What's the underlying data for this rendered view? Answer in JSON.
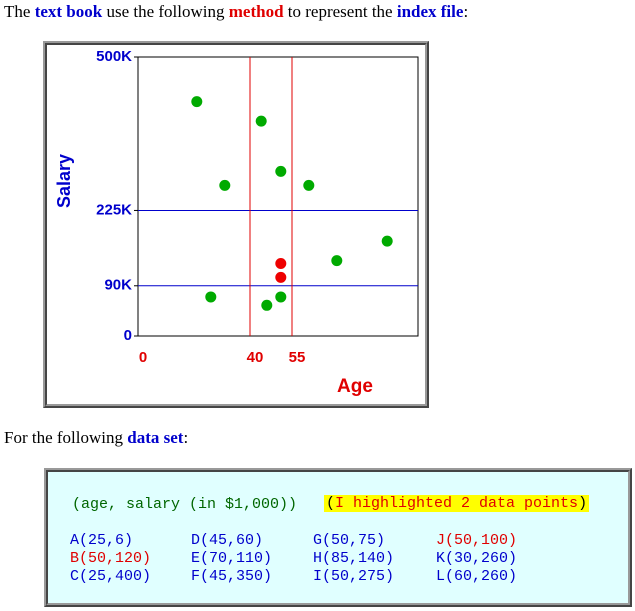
{
  "intro": {
    "parts": [
      {
        "text": "The "
      },
      {
        "text": "text book",
        "emph": "#0000cc"
      },
      {
        "text": " use the following "
      },
      {
        "text": "method",
        "emph": "#e00000"
      },
      {
        "text": " to represent the "
      },
      {
        "text": "index file",
        "emph": "#0000cc"
      },
      {
        "text": ":"
      }
    ]
  },
  "chart_data": {
    "type": "scatter",
    "xlabel": "Age",
    "ylabel": "Salary",
    "xlim": [
      0,
      100
    ],
    "ylim": [
      0,
      500
    ],
    "xticks": [
      0,
      40,
      55
    ],
    "yticks": [
      0,
      {
        "value": 90,
        "label": "90K"
      },
      {
        "value": 225,
        "label": "225K"
      },
      {
        "value": 500,
        "label": "500K"
      }
    ],
    "xaxis_color": "#e00000",
    "yaxis_color": "#0000cc",
    "series": [
      {
        "name": "points",
        "color": "#00aa00",
        "x": [
          21,
          44,
          31,
          51,
          61,
          89,
          71,
          26,
          46,
          51
        ],
        "values": [
          420,
          385,
          270,
          295,
          270,
          170,
          135,
          70,
          55,
          70
        ]
      },
      {
        "name": "highlighted",
        "color": "#ee0000",
        "x": [
          51,
          51
        ],
        "values": [
          130,
          105
        ]
      }
    ]
  },
  "second": {
    "parts": [
      {
        "text": "For the following "
      },
      {
        "text": "data set",
        "emph": "#0000cc"
      },
      {
        "text": ":"
      }
    ]
  },
  "dataset": {
    "header": {
      "text": "(age, salary (in $1,000))",
      "color": "#006600"
    },
    "note": {
      "parts": [
        {
          "text": "(",
          "color": "#000000"
        },
        {
          "text": "I highlighted 2 data points",
          "color": "#e00000"
        },
        {
          "text": ")",
          "color": "#000000"
        }
      ]
    },
    "rows": [
      [
        {
          "text": "A(25,6)",
          "color": "#0000cc"
        },
        {
          "text": "D(45,60)",
          "color": "#0000cc"
        },
        {
          "text": "G(50,75)",
          "color": "#0000cc"
        },
        {
          "text": "J(50,100)",
          "color": "#e00000"
        }
      ],
      [
        {
          "text": "B(50,120)",
          "color": "#e00000"
        },
        {
          "text": "E(70,110)",
          "color": "#0000cc"
        },
        {
          "text": "H(85,140)",
          "color": "#0000cc"
        },
        {
          "text": "K(30,260)",
          "color": "#0000cc"
        }
      ],
      [
        {
          "text": "C(25,400)",
          "color": "#0000cc"
        },
        {
          "text": "F(45,350)",
          "color": "#0000cc"
        },
        {
          "text": "I(50,275)",
          "color": "#0000cc"
        },
        {
          "text": "L(60,260)",
          "color": "#0000cc"
        }
      ]
    ]
  }
}
